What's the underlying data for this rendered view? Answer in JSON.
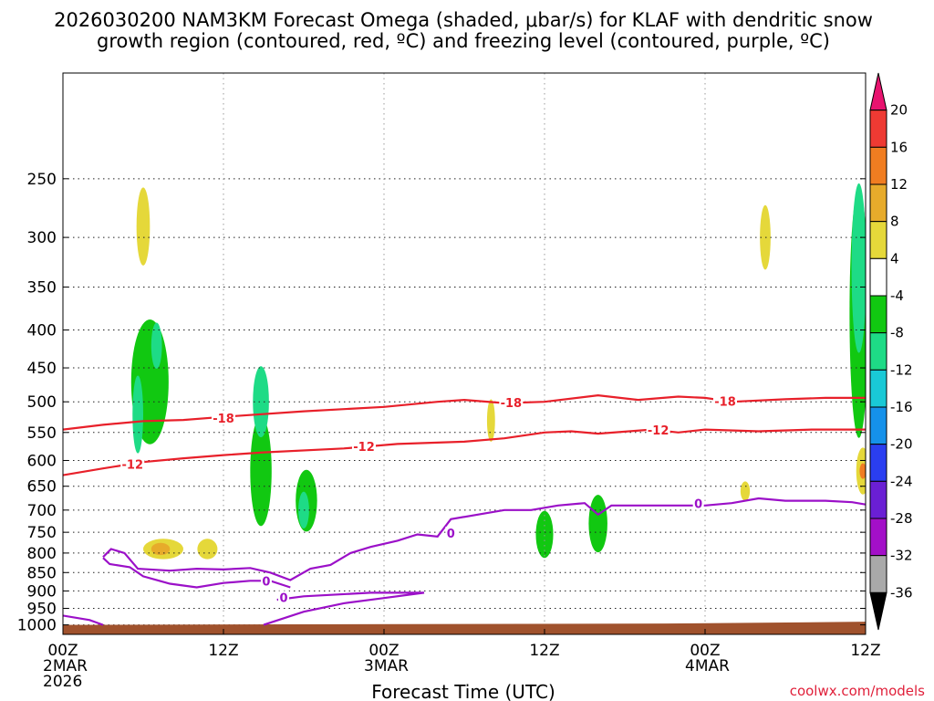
{
  "title": {
    "line1": "2026030200 NAM3KM Forecast Omega (shaded, μbar/s) for KLAF with dendritic snow",
    "line2": "growth region (contoured, red, ºC) and freezing level (contoured, purple, ºC)"
  },
  "credit": "coolwx.com/models",
  "chart_data": {
    "type": "heatmap",
    "xlabel": "Forecast Time (UTC)",
    "ylabel": "",
    "x_range_hours": [
      0,
      60
    ],
    "y_range_hPa": [
      1030,
      180
    ],
    "y_scale": "log-pressure (inverted)",
    "grid": true,
    "x_ticks": [
      {
        "hour": 0,
        "lines": [
          "00Z",
          "2MAR",
          "2026"
        ]
      },
      {
        "hour": 12,
        "lines": [
          "12Z"
        ]
      },
      {
        "hour": 24,
        "lines": [
          "00Z",
          "3MAR"
        ]
      },
      {
        "hour": 36,
        "lines": [
          "12Z"
        ]
      },
      {
        "hour": 48,
        "lines": [
          "00Z",
          "4MAR"
        ]
      },
      {
        "hour": 60,
        "lines": [
          "12Z"
        ]
      }
    ],
    "y_ticks": [
      250,
      300,
      350,
      400,
      450,
      500,
      550,
      600,
      650,
      700,
      750,
      800,
      850,
      900,
      950,
      1000
    ],
    "colorbar": {
      "labels": [
        "20",
        "16",
        "12",
        "8",
        "4",
        "-4",
        "-8",
        "-12",
        "-16",
        "-20",
        "-24",
        "-28",
        "-32",
        "-36"
      ],
      "colors": [
        "#e8136f",
        "#ee3a33",
        "#f07d21",
        "#e7ab2b",
        "#e5d83a",
        "#ffffff",
        "#11c811",
        "#1edb86",
        "#19c9d6",
        "#1591ea",
        "#2a3ef0",
        "#6a1fd4",
        "#a30fc8",
        "#a9a9a9",
        "#000000"
      ]
    },
    "series": [
      {
        "name": "-18",
        "color": "#e8202a",
        "points": [
          [
            0,
            545
          ],
          [
            3,
            537
          ],
          [
            6,
            531
          ],
          [
            9,
            529
          ],
          [
            12,
            524
          ],
          [
            18,
            515
          ],
          [
            24,
            508
          ],
          [
            28,
            500
          ],
          [
            30,
            497
          ],
          [
            33,
            502
          ],
          [
            36,
            500
          ],
          [
            40,
            490
          ],
          [
            43,
            497
          ],
          [
            46,
            492
          ],
          [
            48,
            494
          ],
          [
            50,
            500
          ],
          [
            54,
            496
          ],
          [
            57,
            494
          ],
          [
            60,
            494
          ]
        ]
      },
      {
        "name": "-12",
        "color": "#e8202a",
        "points": [
          [
            0,
            628
          ],
          [
            3,
            615
          ],
          [
            6,
            603
          ],
          [
            9,
            596
          ],
          [
            12,
            590
          ],
          [
            15,
            585
          ],
          [
            21,
            578
          ],
          [
            25,
            570
          ],
          [
            30,
            566
          ],
          [
            33,
            560
          ],
          [
            36,
            550
          ],
          [
            38,
            548
          ],
          [
            40,
            552
          ],
          [
            44,
            545
          ],
          [
            46,
            550
          ],
          [
            48,
            545
          ],
          [
            52,
            548
          ],
          [
            56,
            545
          ],
          [
            60,
            545
          ]
        ]
      },
      {
        "name": "0",
        "color": "#9b10c8",
        "points": [
          [
            -1,
            965
          ],
          [
            2,
            985
          ],
          [
            3,
            1000
          ]
        ]
      },
      {
        "name": "0",
        "color": "#9b10c8",
        "points": [
          [
            3,
            810
          ],
          [
            3.6,
            790
          ],
          [
            4.6,
            800
          ],
          [
            5.6,
            840
          ],
          [
            8,
            845
          ],
          [
            10,
            840
          ],
          [
            12,
            842
          ],
          [
            14,
            838
          ],
          [
            15.5,
            850
          ],
          [
            17,
            870
          ],
          [
            18.5,
            840
          ],
          [
            20,
            830
          ],
          [
            21.5,
            800
          ],
          [
            23,
            785
          ],
          [
            25,
            770
          ],
          [
            26.5,
            755
          ],
          [
            28,
            760
          ],
          [
            29,
            720
          ],
          [
            31,
            710
          ],
          [
            33,
            700
          ],
          [
            35,
            700
          ],
          [
            37,
            690
          ],
          [
            39,
            685
          ],
          [
            40,
            710
          ],
          [
            41,
            690
          ],
          [
            43,
            690
          ],
          [
            45,
            690
          ],
          [
            48,
            690
          ],
          [
            50,
            685
          ],
          [
            52,
            675
          ],
          [
            54,
            680
          ],
          [
            57,
            680
          ],
          [
            59,
            683
          ],
          [
            60,
            688
          ]
        ]
      },
      {
        "name": "0",
        "color": "#9b10c8",
        "points": [
          [
            3,
            812
          ],
          [
            3.5,
            828
          ],
          [
            5,
            836
          ],
          [
            6,
            860
          ],
          [
            8,
            880
          ],
          [
            10,
            890
          ],
          [
            12,
            878
          ],
          [
            14,
            872
          ],
          [
            15.5,
            872
          ],
          [
            17,
            890
          ]
        ]
      },
      {
        "name": "0",
        "color": "#9b10c8",
        "points": [
          [
            15,
            1000
          ],
          [
            18,
            960
          ],
          [
            21,
            935
          ],
          [
            24,
            920
          ],
          [
            27,
            905
          ],
          [
            23,
            905
          ],
          [
            18,
            915
          ],
          [
            16,
            925
          ]
        ]
      }
    ],
    "contour_labels": [
      {
        "text": "-18",
        "hour": 12,
        "hPa": 526,
        "series": "-18"
      },
      {
        "text": "-18",
        "hour": 33.5,
        "hPa": 501,
        "series": "-18"
      },
      {
        "text": "-18",
        "hour": 49.5,
        "hPa": 499,
        "series": "-18"
      },
      {
        "text": "-12",
        "hour": 5.2,
        "hPa": 607,
        "series": "-12"
      },
      {
        "text": "-12",
        "hour": 22.5,
        "hPa": 574,
        "series": "-12"
      },
      {
        "text": "-12",
        "hour": 44.5,
        "hPa": 546,
        "series": "-12"
      },
      {
        "text": "0",
        "hour": 29,
        "hPa": 752,
        "series": "0"
      },
      {
        "text": "0",
        "hour": 47.5,
        "hPa": 686,
        "series": "0"
      },
      {
        "text": "0",
        "hour": 15.2,
        "hPa": 872,
        "series": "0"
      },
      {
        "text": "0",
        "hour": 16.5,
        "hPa": 918,
        "series": "0"
      }
    ],
    "omega_regions": [
      {
        "hour": 5.6,
        "hPa": 520,
        "extent_h": 0.8,
        "extent_hPa": 125,
        "level": "-12"
      },
      {
        "hour": 7,
        "hPa": 420,
        "extent_h": 0.8,
        "extent_hPa": 60,
        "level": "-12"
      },
      {
        "hour": 6.5,
        "hPa": 470,
        "extent_h": 2.8,
        "extent_hPa": 180,
        "level": "-8"
      },
      {
        "hour": 6,
        "hPa": 290,
        "extent_h": 1.0,
        "extent_hPa": 70,
        "level": "4"
      },
      {
        "hour": 7.5,
        "hPa": 790,
        "extent_h": 3.0,
        "extent_hPa": 50,
        "level": "4"
      },
      {
        "hour": 7.3,
        "hPa": 790,
        "extent_h": 1.4,
        "extent_hPa": 30,
        "level": "8"
      },
      {
        "hour": 10.8,
        "hPa": 790,
        "extent_h": 1.5,
        "extent_hPa": 50,
        "level": "4"
      },
      {
        "hour": 14.8,
        "hPa": 500,
        "extent_h": 1.2,
        "extent_hPa": 110,
        "level": "-12"
      },
      {
        "hour": 14.8,
        "hPa": 620,
        "extent_h": 1.6,
        "extent_hPa": 210,
        "level": "-8"
      },
      {
        "hour": 18.2,
        "hPa": 680,
        "extent_h": 1.6,
        "extent_hPa": 130,
        "level": "-8"
      },
      {
        "hour": 18,
        "hPa": 700,
        "extent_h": 0.8,
        "extent_hPa": 80,
        "level": "-12"
      },
      {
        "hour": 36,
        "hPa": 755,
        "extent_h": 1.3,
        "extent_hPa": 110,
        "level": "-8"
      },
      {
        "hour": 40,
        "hPa": 730,
        "extent_h": 1.4,
        "extent_hPa": 130,
        "level": "-8"
      },
      {
        "hour": 59.5,
        "hPa": 330,
        "extent_h": 1.1,
        "extent_hPa": 170,
        "level": "-12"
      },
      {
        "hour": 59.5,
        "hPa": 380,
        "extent_h": 1.4,
        "extent_hPa": 280,
        "level": "-8"
      },
      {
        "hour": 59.8,
        "hPa": 620,
        "extent_h": 1.0,
        "extent_hPa": 90,
        "level": "4"
      },
      {
        "hour": 59.8,
        "hPa": 620,
        "extent_h": 0.5,
        "extent_hPa": 30,
        "level": "12"
      },
      {
        "hour": 52.5,
        "hPa": 300,
        "extent_h": 0.8,
        "extent_hPa": 60,
        "level": "4"
      },
      {
        "hour": 32,
        "hPa": 530,
        "extent_h": 0.6,
        "extent_hPa": 70,
        "level": "4"
      },
      {
        "hour": 51,
        "hPa": 660,
        "extent_h": 0.7,
        "extent_hPa": 40,
        "level": "4"
      }
    ]
  }
}
